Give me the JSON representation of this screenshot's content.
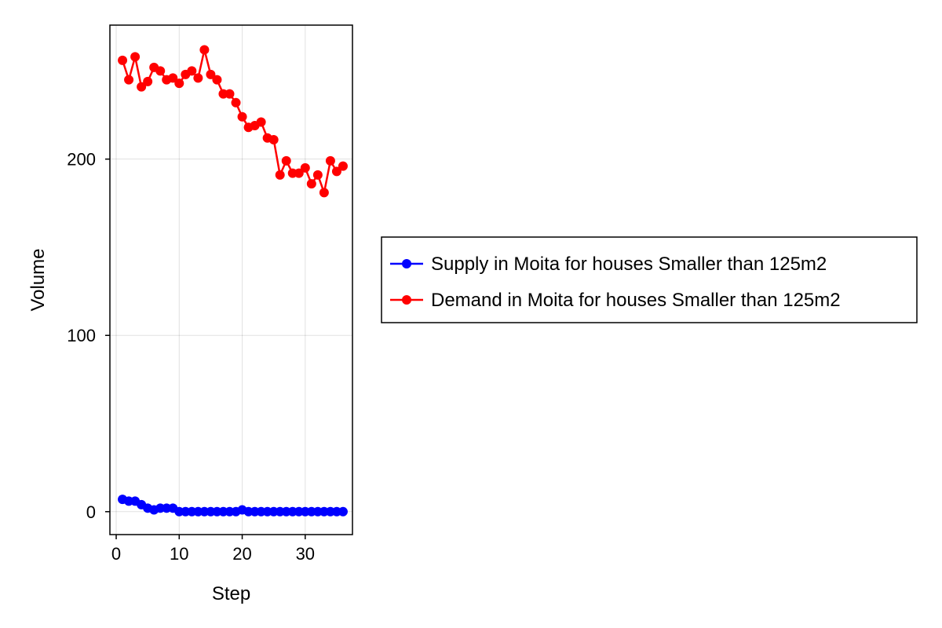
{
  "chart_data": {
    "type": "line",
    "xlabel": "Step",
    "ylabel": "Volume",
    "xlim": [
      -1,
      37.5
    ],
    "ylim": [
      -13,
      276
    ],
    "xticks": [
      0,
      10,
      20,
      30
    ],
    "yticks": [
      0,
      100,
      200
    ],
    "grid": true,
    "legend_position": "right",
    "x": [
      1,
      2,
      3,
      4,
      5,
      6,
      7,
      8,
      9,
      10,
      11,
      12,
      13,
      14,
      15,
      16,
      17,
      18,
      19,
      20,
      21,
      22,
      23,
      24,
      25,
      26,
      27,
      28,
      29,
      30,
      31,
      32,
      33,
      34,
      35,
      36
    ],
    "series": [
      {
        "name": "Supply in Moita for houses Smaller than 125m2",
        "color": "#0000ff",
        "values": [
          7,
          6,
          6,
          4,
          2,
          1,
          2,
          2,
          2,
          0,
          0,
          0,
          0,
          0,
          0,
          0,
          0,
          0,
          0,
          1,
          0,
          0,
          0,
          0,
          0,
          0,
          0,
          0,
          0,
          0,
          0,
          0,
          0,
          0,
          0,
          0
        ]
      },
      {
        "name": "Demand in Moita for houses Smaller than 125m2",
        "color": "#ff0000",
        "values": [
          256,
          245,
          258,
          241,
          244,
          252,
          250,
          245,
          246,
          243,
          248,
          250,
          246,
          262,
          248,
          245,
          237,
          237,
          232,
          224,
          218,
          219,
          221,
          212,
          211,
          191,
          199,
          192,
          192,
          195,
          186,
          191,
          181,
          199,
          193,
          196
        ]
      }
    ]
  }
}
